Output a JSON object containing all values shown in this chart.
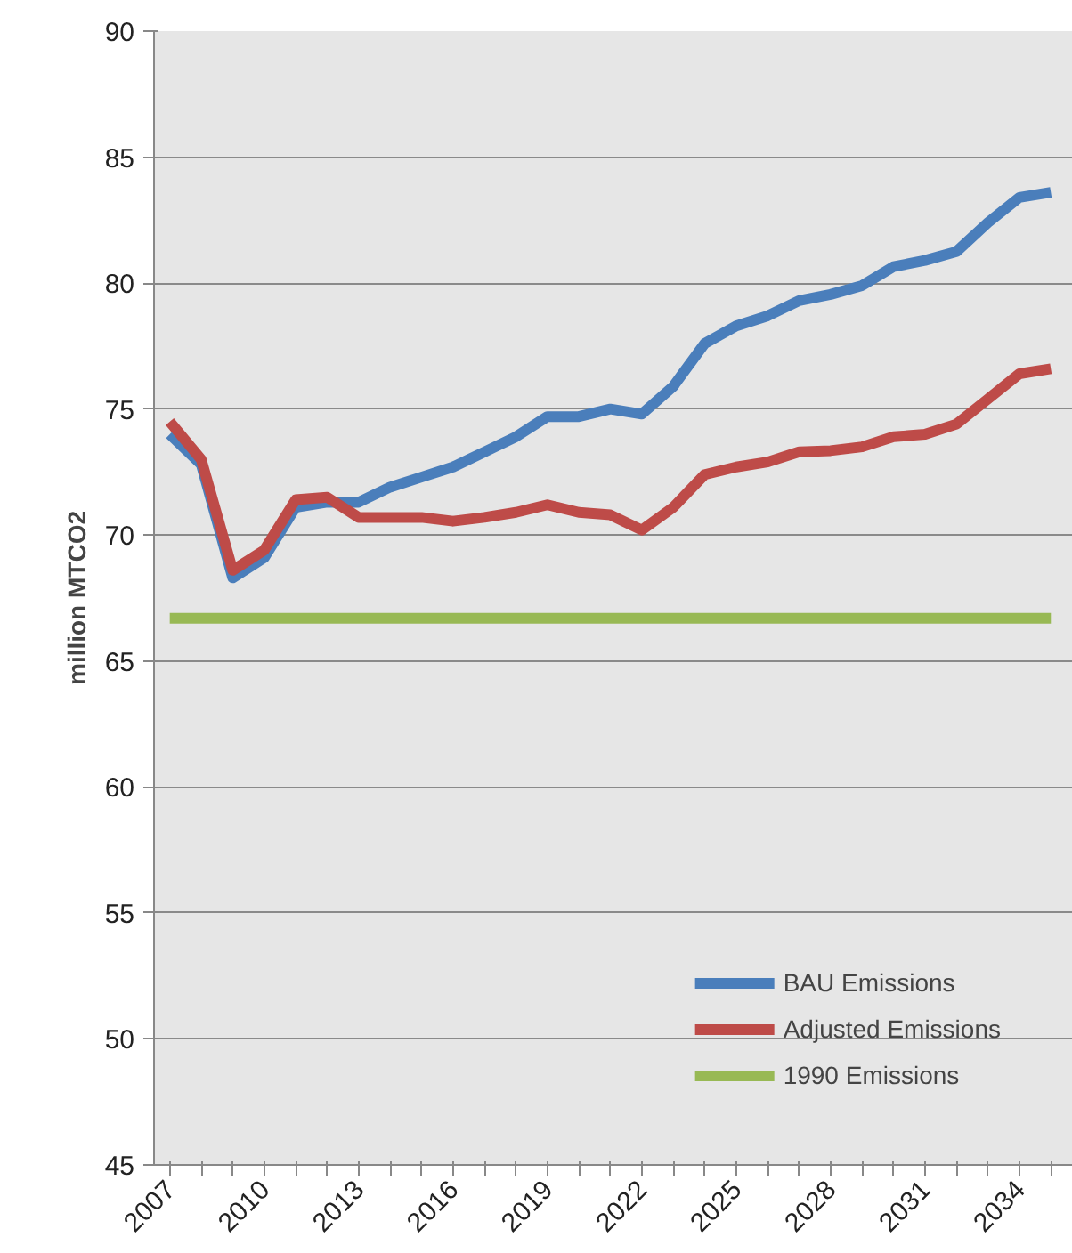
{
  "chart_data": {
    "type": "line",
    "ylabel": "million MTCO2",
    "categories": [
      "2007",
      null,
      null,
      "2010",
      null,
      null,
      "2013",
      null,
      null,
      "2016",
      null,
      null,
      "2019",
      null,
      null,
      "2022",
      null,
      null,
      "2025",
      null,
      null,
      "2028",
      null,
      null,
      "2031",
      null,
      null,
      "2034",
      null
    ],
    "series": [
      {
        "name": "BAU Emissions",
        "color": "#4a7ebb",
        "values": [
          74.0,
          72.8,
          68.3,
          69.1,
          71.1,
          71.3,
          71.3,
          71.9,
          72.3,
          72.7,
          73.3,
          73.9,
          74.7,
          74.7,
          75.0,
          74.8,
          75.9,
          77.6,
          78.3,
          78.7,
          79.3,
          79.55,
          79.9,
          80.65,
          80.9,
          81.25,
          82.4,
          83.4,
          83.6
        ]
      },
      {
        "name": "Adjusted Emissions",
        "color": "#be4b48",
        "values": [
          74.5,
          73.0,
          68.6,
          69.4,
          71.4,
          71.5,
          70.7,
          70.7,
          70.7,
          70.55,
          70.7,
          70.9,
          71.2,
          70.9,
          70.8,
          70.2,
          71.1,
          72.4,
          72.7,
          72.9,
          73.3,
          73.35,
          73.5,
          73.9,
          74.0,
          74.4,
          75.4,
          76.4,
          76.6
        ]
      },
      {
        "name": "1990 Emissions",
        "color": "#98b954",
        "values": [
          66.7,
          66.7,
          66.7,
          66.7,
          66.7,
          66.7,
          66.7,
          66.7,
          66.7,
          66.7,
          66.7,
          66.7,
          66.7,
          66.7,
          66.7,
          66.7,
          66.7,
          66.7,
          66.7,
          66.7,
          66.7,
          66.7,
          66.7,
          66.7,
          66.7,
          66.7,
          66.7,
          66.7,
          66.7
        ]
      }
    ],
    "ylim": [
      45,
      90
    ],
    "yticks": [
      45,
      50,
      55,
      60,
      65,
      70,
      75,
      80,
      85,
      90
    ],
    "grid": "y",
    "legend": "bottom right",
    "marker": "none",
    "line_style": "solid"
  }
}
